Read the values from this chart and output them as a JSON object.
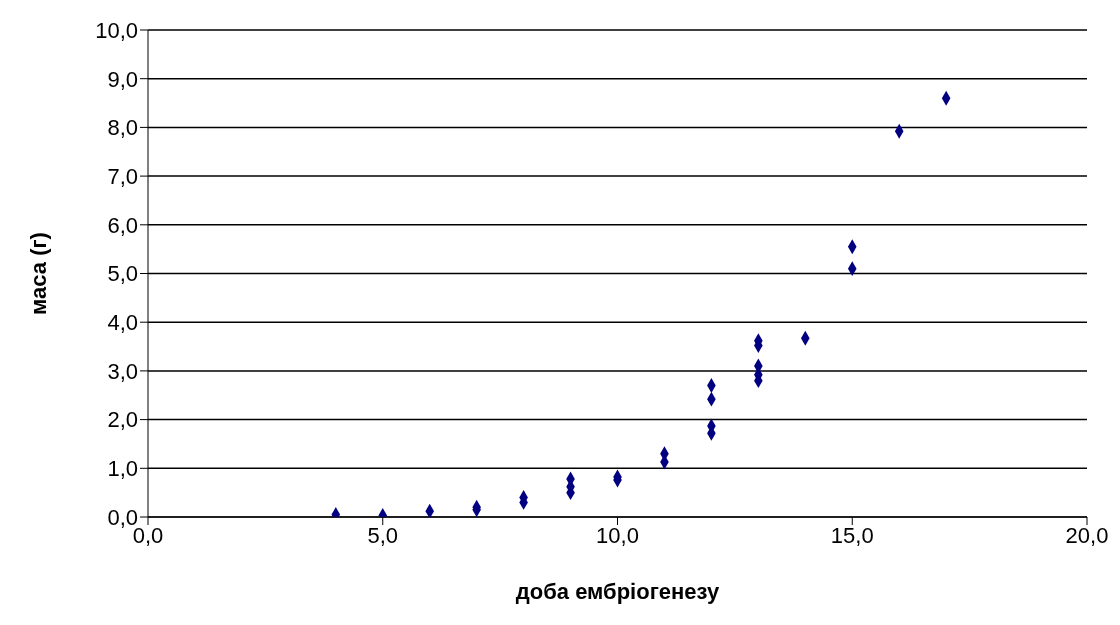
{
  "chart_data": {
    "type": "scatter",
    "xlabel": "доба ембріогенезу",
    "ylabel": "маса (г)",
    "x": [
      4,
      5,
      6,
      7,
      7,
      8,
      8,
      9,
      9,
      9,
      10,
      10,
      11,
      11,
      12,
      12,
      12,
      12,
      13,
      13,
      13,
      13,
      13,
      14,
      15,
      15,
      16,
      17
    ],
    "series": [
      {
        "color": "#000080",
        "values": [
          0.05,
          0.03,
          0.12,
          0.2,
          0.15,
          0.4,
          0.3,
          0.78,
          0.62,
          0.5,
          0.82,
          0.76,
          1.3,
          1.13,
          2.7,
          2.42,
          1.87,
          1.72,
          3.62,
          3.52,
          3.1,
          2.92,
          2.8,
          3.67,
          5.55,
          5.1,
          7.92,
          8.6
        ]
      }
    ],
    "xlim": [
      0,
      20
    ],
    "xticks": [
      {
        "value": 0,
        "label": "0,0"
      },
      {
        "value": 5,
        "label": "5,0"
      },
      {
        "value": 10,
        "label": "10,0"
      },
      {
        "value": 15,
        "label": "15,0"
      },
      {
        "value": 20,
        "label": "20,0"
      }
    ],
    "ylim": [
      0,
      10
    ],
    "yticks": [
      {
        "value": 0,
        "label": "0,0"
      },
      {
        "value": 1,
        "label": "1,0"
      },
      {
        "value": 2,
        "label": "2,0"
      },
      {
        "value": 3,
        "label": "3,0"
      },
      {
        "value": 4,
        "label": "4,0"
      },
      {
        "value": 5,
        "label": "5,0"
      },
      {
        "value": 6,
        "label": "6,0"
      },
      {
        "value": 7,
        "label": "7,0"
      },
      {
        "value": 8,
        "label": "8,0"
      },
      {
        "value": 9,
        "label": "9,0"
      },
      {
        "value": 10,
        "label": "10,0"
      }
    ],
    "grid": "y",
    "marker": "diamond",
    "legend": false
  }
}
